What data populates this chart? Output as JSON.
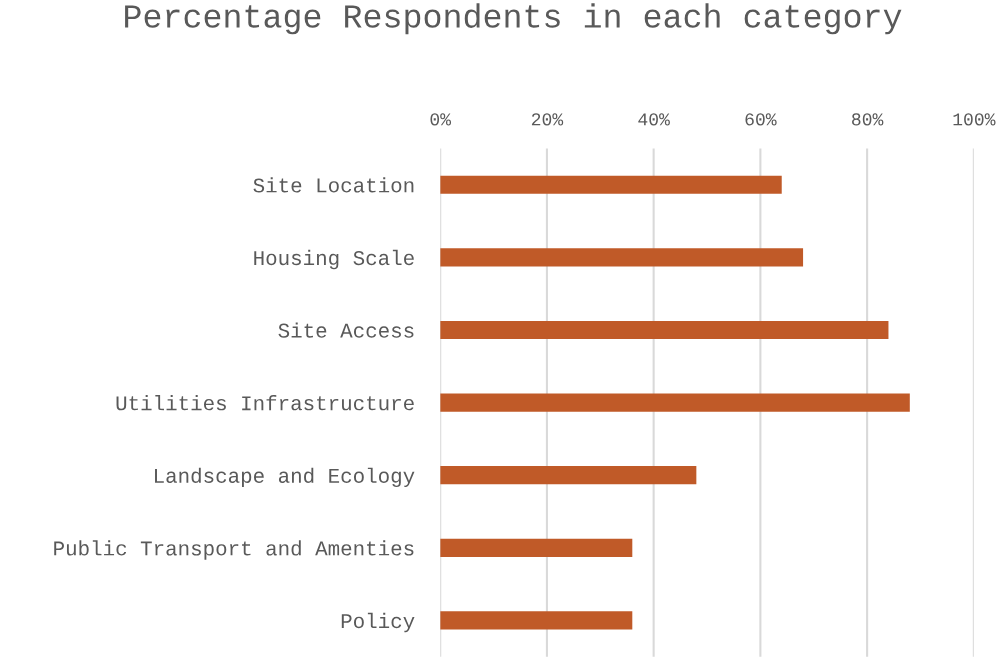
{
  "chart_data": {
    "type": "bar",
    "orientation": "horizontal",
    "title": "Percentage Respondents in each category",
    "categories": [
      "Site Location",
      "Housing Scale",
      "Site Access",
      "Utilities Infrastructure",
      "Landscape and Ecology",
      "Public Transport and Amenties",
      "Policy"
    ],
    "values": [
      64,
      68,
      84,
      88,
      48,
      36,
      36
    ],
    "color": "#c05a28",
    "xlim": [
      0,
      100
    ],
    "xticks": [
      {
        "value": 0,
        "label": "0%"
      },
      {
        "value": 20,
        "label": "20%"
      },
      {
        "value": 40,
        "label": "40%"
      },
      {
        "value": 60,
        "label": "60%"
      },
      {
        "value": 80,
        "label": "80%"
      },
      {
        "value": 100,
        "label": "100%"
      }
    ],
    "grid": "x"
  }
}
